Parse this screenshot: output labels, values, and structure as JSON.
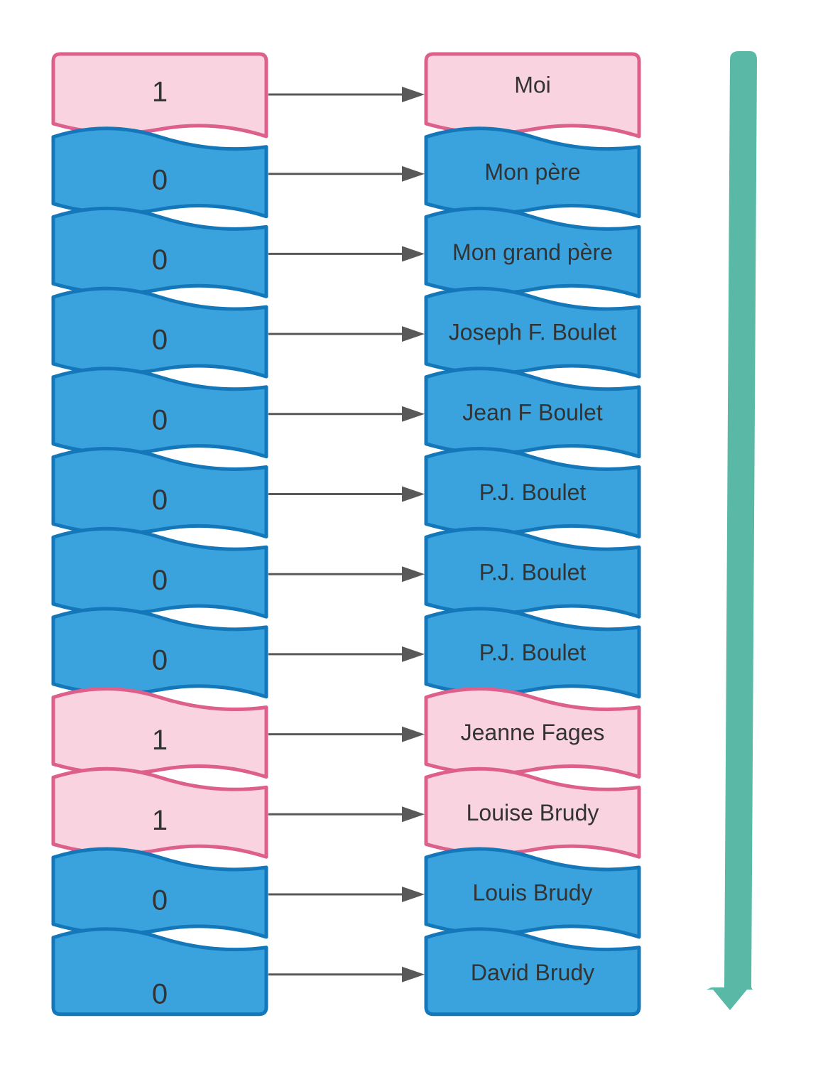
{
  "colors": {
    "one_fill": "#f9d3df",
    "one_stroke": "#dd5f8c",
    "zero_fill": "#3aa3dd",
    "zero_stroke": "#1477b9",
    "connector": "#595959",
    "direction_arrow": "#59b9a6",
    "text": "#333333"
  },
  "rows": [
    {
      "bit": "1",
      "name": "Moi"
    },
    {
      "bit": "0",
      "name": "Mon père"
    },
    {
      "bit": "0",
      "name": "Mon grand père"
    },
    {
      "bit": "0",
      "name": "Joseph F. Boulet"
    },
    {
      "bit": "0",
      "name": "Jean F Boulet"
    },
    {
      "bit": "0",
      "name": "P.J. Boulet"
    },
    {
      "bit": "0",
      "name": "P.J. Boulet"
    },
    {
      "bit": "0",
      "name": "P.J. Boulet"
    },
    {
      "bit": "1",
      "name": "Jeanne Fages"
    },
    {
      "bit": "1",
      "name": "Louise Brudy"
    },
    {
      "bit": "0",
      "name": "Louis Brudy"
    },
    {
      "bit": "0",
      "name": "David Brudy"
    }
  ],
  "direction_arrow": {
    "icon": "arrow-down-icon"
  }
}
